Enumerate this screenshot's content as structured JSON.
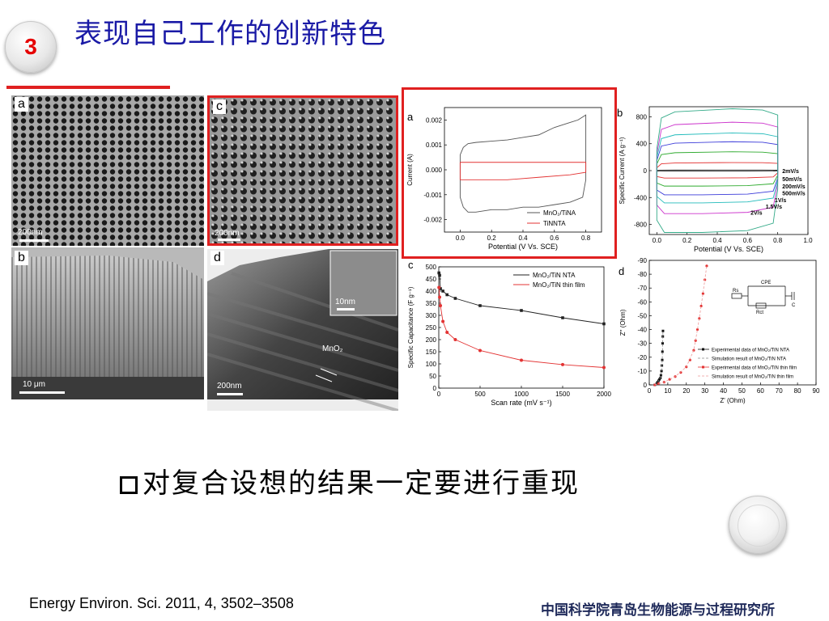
{
  "slide": {
    "number": "3",
    "title": "表现自己工作的创新特色"
  },
  "sem": {
    "a": {
      "label": "a",
      "scale": "200nm"
    },
    "b": {
      "label": "b",
      "scale": "10 μm"
    },
    "c": {
      "label": "c",
      "scale": "200nm"
    },
    "d": {
      "label": "d",
      "scale": "200nm",
      "inset_scale": "10nm",
      "annotation": "MnO₂"
    }
  },
  "chart_data": [
    {
      "id": "a",
      "type": "line",
      "panel_label": "a",
      "xlabel": "Potential (V Vs. SCE)",
      "ylabel": "Current (A)",
      "xlim": [
        -0.1,
        0.9
      ],
      "ylim": [
        -0.0025,
        0.0025
      ],
      "xticks": [
        "0.0",
        "0.2",
        "0.4",
        "0.6",
        "0.8"
      ],
      "xtick_values": [
        0,
        0.2,
        0.4,
        0.6,
        0.8
      ],
      "yticks": [
        "-0.002",
        "-0.001",
        "0.000",
        "0.001",
        "0.002"
      ],
      "ytick_values": [
        -0.002,
        -0.001,
        0,
        0.001,
        0.002
      ],
      "legend_position": "bottom-right",
      "series": [
        {
          "name": "MnO₂/TiNA",
          "color": "#555555",
          "x": [
            0.0,
            0.02,
            0.05,
            0.1,
            0.2,
            0.3,
            0.4,
            0.5,
            0.6,
            0.7,
            0.75,
            0.8,
            0.8,
            0.78,
            0.7,
            0.6,
            0.5,
            0.4,
            0.3,
            0.2,
            0.1,
            0.05,
            0.02,
            0.0,
            0.0
          ],
          "y": [
            0.0006,
            0.0009,
            0.00105,
            0.0011,
            0.00115,
            0.0012,
            0.0013,
            0.0014,
            0.0017,
            0.0019,
            0.002,
            0.0022,
            -0.0004,
            -0.0011,
            -0.0013,
            -0.0014,
            -0.0015,
            -0.0015,
            -0.0016,
            -0.0016,
            -0.0017,
            -0.0017,
            -0.0015,
            -0.0011,
            0.0006
          ]
        },
        {
          "name": "TiNNTA",
          "color": "#e33333",
          "x": [
            0.0,
            0.1,
            0.3,
            0.5,
            0.7,
            0.8,
            0.8,
            0.7,
            0.5,
            0.3,
            0.1,
            0.0,
            0.0
          ],
          "y": [
            0.0003,
            0.0003,
            0.0003,
            0.0003,
            0.0003,
            0.0003,
            -0.0001,
            -0.0002,
            -0.0003,
            -0.0004,
            -0.0004,
            -0.0004,
            0.0003
          ]
        }
      ]
    },
    {
      "id": "b",
      "type": "line",
      "panel_label": "b",
      "xlabel": "Potential (V Vs. SCE)",
      "ylabel": "Specific Current (A g⁻¹)",
      "xlim": [
        -0.05,
        1.0
      ],
      "ylim": [
        -950,
        950
      ],
      "xticks": [
        "0.0",
        "0.2",
        "0.4",
        "0.6",
        "0.8",
        "1.0"
      ],
      "xtick_values": [
        0,
        0.2,
        0.4,
        0.6,
        0.8,
        1.0
      ],
      "yticks": [
        "-800",
        "-400",
        "0",
        "400",
        "800"
      ],
      "ytick_values": [
        -800,
        -400,
        0,
        400,
        800
      ],
      "rate_labels": [
        "2mV/s",
        "50mV/s",
        "200mV/s",
        "500mV/s",
        "1V/s",
        "1.5V/s",
        "2V/s"
      ],
      "series": [
        {
          "name": "2mV/s",
          "color": "#222222",
          "top": 8,
          "bottom": -8
        },
        {
          "name": "50mV/s",
          "color": "#e33333",
          "top": 120,
          "bottom": -110
        },
        {
          "name": "200mV/s",
          "color": "#2eaa2e",
          "top": 280,
          "bottom": -230
        },
        {
          "name": "500mV/s",
          "color": "#3b3bd9",
          "top": 430,
          "bottom": -360
        },
        {
          "name": "1V/s",
          "color": "#22bbbb",
          "top": 560,
          "bottom": -480
        },
        {
          "name": "1.5V/s",
          "color": "#cc33cc",
          "top": 720,
          "bottom": -640
        },
        {
          "name": "2V/s",
          "color": "#33aa88",
          "top": 920,
          "bottom": -920
        }
      ]
    },
    {
      "id": "c",
      "type": "line",
      "panel_label": "c",
      "xlabel": "Scan rate (mV s⁻¹)",
      "ylabel": "Specific Capacitance (F g⁻¹)",
      "xlim": [
        0,
        2000
      ],
      "ylim": [
        0,
        500
      ],
      "xticks": [
        "0",
        "500",
        "1000",
        "1500",
        "2000"
      ],
      "xtick_values": [
        0,
        500,
        1000,
        1500,
        2000
      ],
      "yticks": [
        "0",
        "50",
        "100",
        "150",
        "200",
        "250",
        "300",
        "350",
        "400",
        "450",
        "500"
      ],
      "ytick_values": [
        0,
        50,
        100,
        150,
        200,
        250,
        300,
        350,
        400,
        450,
        500
      ],
      "legend_position": "top-right",
      "series": [
        {
          "name": "MnO₂/TiN NTA",
          "color": "#222222",
          "x": [
            2,
            10,
            20,
            50,
            100,
            200,
            500,
            1000,
            1500,
            2000
          ],
          "y": [
            475,
            465,
            410,
            400,
            385,
            370,
            340,
            320,
            290,
            265
          ]
        },
        {
          "name": "MnO₂/TiN thin film",
          "color": "#e33333",
          "x": [
            2,
            10,
            20,
            50,
            100,
            200,
            500,
            1000,
            1500,
            2000
          ],
          "y": [
            415,
            375,
            340,
            275,
            230,
            200,
            155,
            115,
            97,
            85
          ]
        }
      ]
    },
    {
      "id": "d",
      "type": "scatter",
      "panel_label": "d",
      "xlabel": "Z' (Ohm)",
      "ylabel": "Z'' (Ohm)",
      "xlim": [
        0,
        90
      ],
      "ylim": [
        0,
        -90
      ],
      "xticks": [
        "0",
        "10",
        "20",
        "30",
        "40",
        "50",
        "60",
        "70",
        "80",
        "90"
      ],
      "xtick_values": [
        0,
        10,
        20,
        30,
        40,
        50,
        60,
        70,
        80,
        90
      ],
      "yticks": [
        "0",
        "-10",
        "-20",
        "-30",
        "-40",
        "-50",
        "-60",
        "-70",
        "-80",
        "-90"
      ],
      "ytick_values": [
        0,
        -10,
        -20,
        -30,
        -40,
        -50,
        -60,
        -70,
        -80,
        -90
      ],
      "legend_position": "right",
      "circuit": {
        "r1": "Rs",
        "cpe": "CPE",
        "rct": "Rct",
        "c": "C"
      },
      "series": [
        {
          "name": "Experimental data of MnO₂/TiN NTA",
          "color": "#111111",
          "style": "points",
          "x": [
            3,
            4,
            4.5,
            5,
            5.5,
            6,
            6.3,
            6.6,
            6.8,
            7,
            7.1,
            7.2,
            7.3,
            7.4
          ],
          "y": [
            0,
            -1,
            -2,
            -3,
            -4,
            -5,
            -7,
            -10,
            -14,
            -18,
            -24,
            -30,
            -35,
            -39
          ]
        },
        {
          "name": "Simulation result of MnO₂/TiN NTA",
          "color": "#888888",
          "style": "dash",
          "x": [
            3,
            5,
            6,
            6.6,
            7,
            7.2,
            7.4
          ],
          "y": [
            0,
            -3,
            -5,
            -10,
            -18,
            -30,
            -39
          ]
        },
        {
          "name": "Experimental data of MnO₂/TiN thin film",
          "color": "#e33333",
          "style": "points",
          "x": [
            3,
            5,
            8,
            11,
            14,
            17,
            20,
            22,
            24,
            25,
            26,
            27,
            28,
            29,
            30,
            31
          ],
          "y": [
            0,
            -1,
            -2,
            -4,
            -6,
            -9,
            -13,
            -18,
            -25,
            -32,
            -40,
            -48,
            -57,
            -66,
            -76,
            -86
          ]
        },
        {
          "name": "Simulation result of MnO₂/TiN thin film",
          "color": "#ee9999",
          "style": "dash",
          "x": [
            3,
            8,
            14,
            20,
            24,
            26,
            28,
            30,
            31
          ],
          "y": [
            0,
            -2,
            -6,
            -13,
            -25,
            -40,
            -57,
            -76,
            -86
          ]
        }
      ]
    }
  ],
  "bullet": {
    "text": "对复合设想的结果一定要进行重现"
  },
  "footer": {
    "citation": "Energy Environ. Sci. 2011, 4, 3502–3508",
    "institute": "中国科学院青岛生物能源与过程研究所"
  }
}
